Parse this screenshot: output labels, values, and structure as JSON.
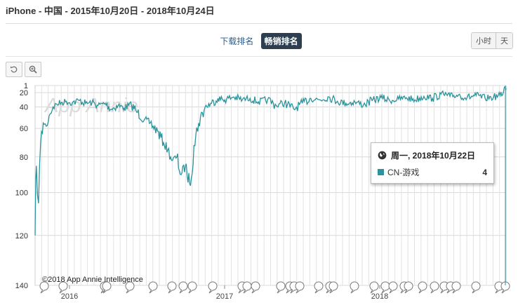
{
  "header": {
    "title": "iPhone - 中国 - 2015年10月20日 - 2018年10月24日"
  },
  "tabs": [
    {
      "label": "下载排名",
      "active": false
    },
    {
      "label": "畅销排名",
      "active": true
    }
  ],
  "granularity": [
    {
      "label": "小时",
      "active": false
    },
    {
      "label": "天",
      "active": true
    }
  ],
  "toolbar": {
    "reset_icon": "undo-icon",
    "zoom_icon": "zoom-in-icon"
  },
  "watermark": "App Annie",
  "copyright": "©2018 App Annie Intelligence",
  "tooltip": {
    "icon": "globe-icon",
    "date": "周一, 2018年10月22日",
    "series": "CN-游戏",
    "value": "4"
  },
  "colors": {
    "series": "#2b939c",
    "grid": "#d9d9d9",
    "active_tab": "#2c3e50"
  },
  "chart_data": {
    "type": "line",
    "title": "",
    "xlabel": "",
    "ylabel": "",
    "y_reversed": true,
    "ylim": [
      1,
      140
    ],
    "y_ticks": [
      1,
      20,
      40,
      60,
      80,
      100,
      120,
      140
    ],
    "x_ticks": [
      "2016",
      "2017",
      "2018"
    ],
    "x_range": [
      "2015-10-20",
      "2018-10-24"
    ],
    "grid": true,
    "series": [
      {
        "name": "CN-游戏",
        "points": [
          [
            "2015-10-20",
            120
          ],
          [
            "2015-10-23",
            85
          ],
          [
            "2015-10-28",
            105
          ],
          [
            "2015-11-02",
            70
          ],
          [
            "2015-11-08",
            55
          ],
          [
            "2015-11-15",
            58
          ],
          [
            "2015-11-22",
            48
          ],
          [
            "2015-12-01",
            40
          ],
          [
            "2015-12-10",
            36
          ],
          [
            "2015-12-20",
            34
          ],
          [
            "2016-01-01",
            32
          ],
          [
            "2016-01-15",
            34
          ],
          [
            "2016-02-01",
            31
          ],
          [
            "2016-02-15",
            35
          ],
          [
            "2016-03-01",
            34
          ],
          [
            "2016-03-15",
            38
          ],
          [
            "2016-04-01",
            35
          ],
          [
            "2016-04-15",
            42
          ],
          [
            "2016-05-01",
            38
          ],
          [
            "2016-05-15",
            41
          ],
          [
            "2016-06-01",
            37
          ],
          [
            "2016-06-15",
            45
          ],
          [
            "2016-07-01",
            52
          ],
          [
            "2016-07-15",
            55
          ],
          [
            "2016-08-01",
            62
          ],
          [
            "2016-08-15",
            70
          ],
          [
            "2016-08-25",
            75
          ],
          [
            "2016-09-05",
            82
          ],
          [
            "2016-09-15",
            80
          ],
          [
            "2016-09-25",
            90
          ],
          [
            "2016-10-05",
            85
          ],
          [
            "2016-10-15",
            95
          ],
          [
            "2016-10-25",
            72
          ],
          [
            "2016-11-05",
            55
          ],
          [
            "2016-11-20",
            40
          ],
          [
            "2016-12-05",
            35
          ],
          [
            "2016-12-20",
            28
          ],
          [
            "2017-01-05",
            30
          ],
          [
            "2017-01-25",
            26
          ],
          [
            "2017-02-15",
            30
          ],
          [
            "2017-03-05",
            28
          ],
          [
            "2017-03-25",
            33
          ],
          [
            "2017-04-15",
            30
          ],
          [
            "2017-05-05",
            38
          ],
          [
            "2017-05-25",
            34
          ],
          [
            "2017-06-15",
            42
          ],
          [
            "2017-07-05",
            35
          ],
          [
            "2017-07-25",
            28
          ],
          [
            "2017-08-15",
            30
          ],
          [
            "2017-09-05",
            26
          ],
          [
            "2017-09-25",
            32
          ],
          [
            "2017-10-15",
            35
          ],
          [
            "2017-11-05",
            33
          ],
          [
            "2017-11-25",
            37
          ],
          [
            "2017-12-15",
            31
          ],
          [
            "2018-01-05",
            27
          ],
          [
            "2018-01-25",
            31
          ],
          [
            "2018-02-15",
            29
          ],
          [
            "2018-03-05",
            27
          ],
          [
            "2018-03-25",
            30
          ],
          [
            "2018-04-15",
            25
          ],
          [
            "2018-05-05",
            28
          ],
          [
            "2018-05-25",
            22
          ],
          [
            "2018-06-15",
            25
          ],
          [
            "2018-07-05",
            23
          ],
          [
            "2018-07-25",
            27
          ],
          [
            "2018-08-15",
            24
          ],
          [
            "2018-09-05",
            28
          ],
          [
            "2018-09-25",
            26
          ],
          [
            "2018-10-10",
            24
          ],
          [
            "2018-10-18",
            18
          ],
          [
            "2018-10-22",
            4
          ],
          [
            "2018-10-24",
            8
          ]
        ]
      }
    ]
  }
}
